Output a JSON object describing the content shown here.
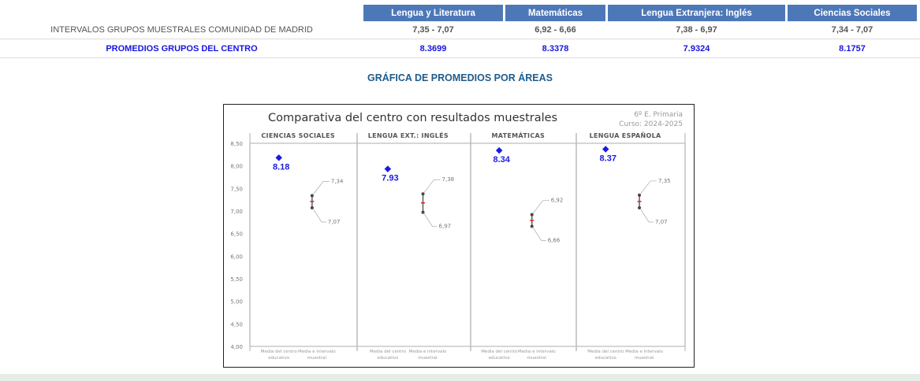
{
  "table": {
    "headers": [
      "Lengua y Literatura",
      "Matemáticas",
      "Lengua Extranjera: Inglés",
      "Ciencias Sociales"
    ],
    "rows": [
      {
        "label": "INTERVALOS GRUPOS MUESTRALES COMUNIDAD DE MADRID",
        "values": [
          "7,35 - 7,07",
          "6,92 - 6,66",
          "7,38 - 6,97",
          "7,34 - 7,07"
        ]
      },
      {
        "label": "PROMEDIOS GRUPOS DEL CENTRO",
        "values": [
          "8.3699",
          "8.3378",
          "7.9324",
          "8.1757"
        ]
      }
    ]
  },
  "section_title": "GRÁFICA DE PROMEDIOS POR ÁREAS",
  "chart_data": {
    "type": "scatter",
    "title": "Comparativa del centro con resultados muestrales",
    "subtitle_lines": [
      "6º E. Primaria",
      "Curso: 2024-2025"
    ],
    "ylim": [
      4.0,
      8.5
    ],
    "yticks": [
      "4,00",
      "4,50",
      "5,00",
      "5,50",
      "6,00",
      "6,50",
      "7,00",
      "7,50",
      "8,00",
      "8,50"
    ],
    "x_category_labels": [
      [
        "Media del centro",
        "educativo"
      ],
      [
        "Media e intervalo",
        "muestral"
      ]
    ],
    "grid": false,
    "panels": [
      {
        "name": "CIENCIAS SOCIALES",
        "center_mean": 8.18,
        "center_label": "8.18",
        "interval_high": 7.34,
        "interval_high_label": "7,34",
        "interval_low": 7.07,
        "interval_low_label": "7,07",
        "sample_mean": 7.21
      },
      {
        "name": "LENGUA EXT.: INGLÉS",
        "center_mean": 7.93,
        "center_label": "7.93",
        "interval_high": 7.38,
        "interval_high_label": "7,38",
        "interval_low": 6.97,
        "interval_low_label": "6,97",
        "sample_mean": 7.18
      },
      {
        "name": "MATEMÁTICAS",
        "center_mean": 8.34,
        "center_label": "8.34",
        "interval_high": 6.92,
        "interval_high_label": "6,92",
        "interval_low": 6.66,
        "interval_low_label": "6,66",
        "sample_mean": 6.79
      },
      {
        "name": "LENGUA ESPAÑOLA",
        "center_mean": 8.37,
        "center_label": "8.37",
        "interval_high": 7.35,
        "interval_high_label": "7,35",
        "interval_low": 7.07,
        "interval_low_label": "7,07",
        "sample_mean": 7.21
      }
    ],
    "colors": {
      "center_marker": "#1a1ae6",
      "interval": "#555555",
      "sample_mean": "#e02020",
      "panel_border": "#bbbbbb"
    }
  }
}
